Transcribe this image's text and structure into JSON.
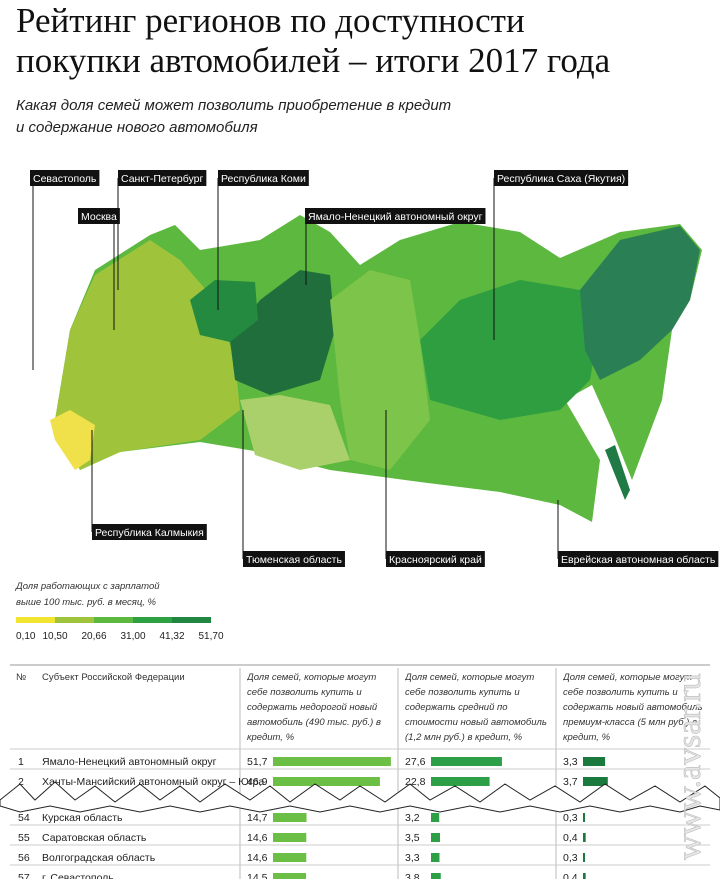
{
  "header": {
    "title": [
      "Рейтинг регионов по доступности",
      "покупки автомобилей – итоги 2017 года"
    ],
    "subtitle": [
      "Какая доля семей может позволить приобретение в кредит",
      "и содержание нового автомобиля"
    ]
  },
  "map": {
    "labels": [
      "Севастополь",
      "Санкт-Петербург",
      "Республика Коми",
      "Москва",
      "Ямало-Ненецкий автономный округ",
      "Республика Саха (Якутия)",
      "Республика Калмыкия",
      "Тюменская область",
      "Красноярский край",
      "Еврейская автономная область"
    ]
  },
  "legend": {
    "title": [
      "Доля работающих с зарплатой",
      "выше 100 тыс. руб. в месяц, %"
    ],
    "colors": [
      "#f2e531",
      "#9fc43c",
      "#5cb83e",
      "#2ea142",
      "#1f8740"
    ],
    "ticks": [
      "0,10",
      "10,50",
      "20,66",
      "31,00",
      "41,32",
      "51,70"
    ]
  },
  "table": {
    "columns": [
      "№",
      "Субъект Российской Федерации",
      "Доля семей, которые могут себе позволить купить и содержать недорогой новый автомобиль (490 тыс. руб.) в кредит, %",
      "Доля семей, которые могут себе позволить купить и содержать средний по стоимости новый автомобиль (1,2 млн руб.) в кредит, %",
      "Доля семей, которые могут себе позволить купить и содержать новый автомобиль премиум-класса (5 млн руб.) в кредит, %"
    ],
    "bar_colors": [
      "#6cbf45",
      "#2da047",
      "#1a7a3d"
    ],
    "rows": [
      [
        "1",
        "Ямало-Ненецкий автономный округ",
        {
          "value": 51.7,
          "label": "51,7"
        },
        {
          "value": 27.6,
          "label": "27,6"
        },
        {
          "value": 3.3,
          "label": "3,3"
        }
      ],
      [
        "2",
        "Ханты-Мансийский автономный округ – Югра",
        {
          "value": 46.9,
          "label": "46,9"
        },
        {
          "value": 22.8,
          "label": "22,8"
        },
        {
          "value": 3.7,
          "label": "3,7"
        }
      ],
      [
        "54",
        "Курская область",
        {
          "value": 14.7,
          "label": "14,7"
        },
        {
          "value": 3.2,
          "label": "3,2"
        },
        {
          "value": 0.3,
          "label": "0,3"
        }
      ],
      [
        "55",
        "Саратовская область",
        {
          "value": 14.6,
          "label": "14,6"
        },
        {
          "value": 3.5,
          "label": "3,5"
        },
        {
          "value": 0.4,
          "label": "0,4"
        }
      ],
      [
        "56",
        "Волгоградская область",
        {
          "value": 14.6,
          "label": "14,6"
        },
        {
          "value": 3.3,
          "label": "3,3"
        },
        {
          "value": 0.3,
          "label": "0,3"
        }
      ],
      [
        "57",
        "г. Севастополь",
        {
          "value": 14.5,
          "label": "14,5"
        },
        {
          "value": 3.8,
          "label": "3,8"
        },
        {
          "value": 0.4,
          "label": "0,4"
        }
      ]
    ]
  },
  "watermark": "www.avsar.ru"
}
